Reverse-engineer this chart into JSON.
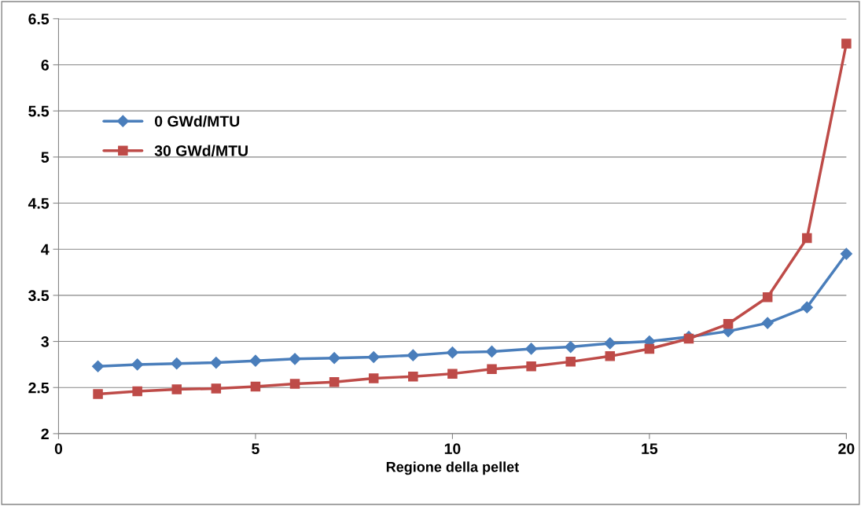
{
  "chart_data": {
    "type": "line",
    "xlabel": "Regione della pellet",
    "x": [
      1,
      2,
      3,
      4,
      5,
      6,
      7,
      8,
      9,
      10,
      11,
      12,
      13,
      14,
      15,
      16,
      17,
      18,
      19,
      20
    ],
    "xlim": [
      0,
      20
    ],
    "xticks": [
      0,
      5,
      10,
      15,
      20
    ],
    "ylim": [
      2,
      6.5
    ],
    "yticks": [
      2,
      2.5,
      3,
      3.5,
      4,
      4.5,
      5,
      5.5,
      6,
      6.5
    ],
    "grid": "y",
    "legend": "top left",
    "line_style": "solid",
    "series": [
      {
        "name": "0 GWd/MTU",
        "color": "#4a7ebb",
        "marker": "diamond",
        "values": [
          2.73,
          2.75,
          2.76,
          2.77,
          2.79,
          2.81,
          2.82,
          2.83,
          2.85,
          2.88,
          2.89,
          2.92,
          2.94,
          2.98,
          3.0,
          3.05,
          3.11,
          3.2,
          3.37,
          3.95
        ]
      },
      {
        "name": "30 GWd/MTU",
        "color": "#be4b48",
        "marker": "square",
        "values": [
          2.43,
          2.46,
          2.48,
          2.49,
          2.51,
          2.54,
          2.56,
          2.6,
          2.62,
          2.65,
          2.7,
          2.73,
          2.78,
          2.84,
          2.92,
          3.03,
          3.19,
          3.48,
          4.12,
          6.23
        ]
      }
    ]
  }
}
